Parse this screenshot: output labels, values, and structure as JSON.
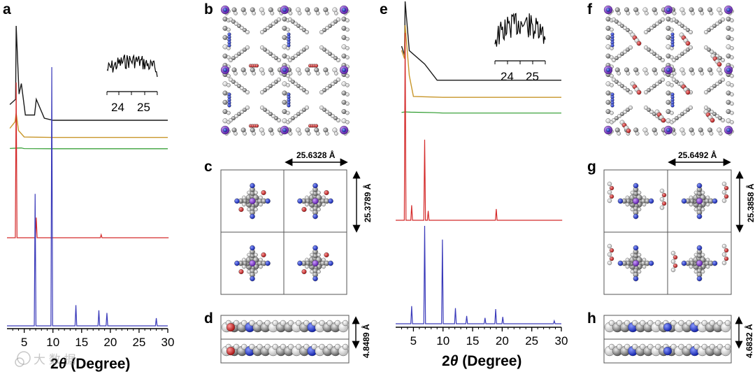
{
  "panels": {
    "a": "a",
    "b": "b",
    "c": "c",
    "d": "d",
    "e": "e",
    "f": "f",
    "g": "g",
    "h": "h"
  },
  "xaxis": {
    "label": "2θ (Degree)",
    "label_prefix": "2",
    "label_theta": "θ",
    "label_rest": " (Degree)",
    "min": 2,
    "max": 30
  },
  "left_ticks": [
    "5",
    "10",
    "15",
    "20",
    "25",
    "30"
  ],
  "right_ticks": [
    "5",
    "10",
    "15",
    "20",
    "25",
    "30"
  ],
  "inset_ticks": [
    "24",
    "25"
  ],
  "measures": {
    "c_width": "25.6328 Å",
    "c_height": "25.3789 Å",
    "d_height": "4.8489 Å",
    "g_width": "25.6492 Å",
    "g_height": "25.3858 Å",
    "h_height": "4.6832 Å"
  },
  "watermark": "大 数 据",
  "colors": {
    "black": "#1a1a1a",
    "gold": "#c8962a",
    "green": "#2a9a2a",
    "red": "#d42a2a",
    "blue": "#3a3aba",
    "atom_gray": "#8a8a8a",
    "atom_white": "#e8e8e8",
    "atom_blue": "#2233cc",
    "atom_red": "#d02020",
    "atom_purple": "#7a3acc"
  },
  "chart_data": [
    {
      "type": "line",
      "panel": "a",
      "xlabel": "2θ (Degree)",
      "xlim": [
        2,
        30
      ],
      "series": [
        {
          "color": "black",
          "x": [
            2.5,
            3.5,
            3.6,
            4.1,
            4.5,
            5.2,
            6.8,
            7.1,
            8.5,
            10,
            20,
            30
          ],
          "y": [
            0.25,
            0.3,
            1.0,
            0.35,
            0.45,
            0.15,
            0.15,
            0.3,
            0.12,
            0.1,
            0.1,
            0.1
          ]
        },
        {
          "color": "gold",
          "x": [
            2.5,
            3.4,
            3.6,
            4.0,
            5,
            10,
            20,
            30
          ],
          "y": [
            0.25,
            0.4,
            0.6,
            0.2,
            0.05,
            0.04,
            0.04,
            0.04
          ]
        },
        {
          "color": "green",
          "x": [
            2.5,
            3.5,
            4.5,
            5,
            10,
            30
          ],
          "y": [
            0.05,
            0.08,
            0.1,
            0.03,
            0.02,
            0.02
          ]
        },
        {
          "color": "red",
          "x": [
            3.6,
            7.1,
            18.4,
            30
          ],
          "y": [
            1.0,
            0.13,
            0.02,
            0.0
          ]
        },
        {
          "color": "blue",
          "x": [
            6.9,
            9.8,
            14.0,
            18.0,
            19.4,
            28.0
          ],
          "y": [
            0.51,
            1.0,
            0.08,
            0.06,
            0.05,
            0.03
          ]
        }
      ]
    },
    {
      "type": "line",
      "panel": "e",
      "xlabel": "2θ (Degree)",
      "xlim": [
        2,
        30
      ],
      "series": [
        {
          "color": "black",
          "x": [
            3,
            3.5,
            3.6,
            4.3,
            6.9,
            9,
            20,
            30
          ],
          "y": [
            0.5,
            0.4,
            1.0,
            0.45,
            0.3,
            0.12,
            0.12,
            0.12
          ]
        },
        {
          "color": "gold",
          "x": [
            3,
            3.5,
            3.6,
            4.3,
            5,
            10,
            30
          ],
          "y": [
            0.6,
            0.5,
            0.9,
            0.3,
            0.05,
            0.04,
            0.04
          ]
        },
        {
          "color": "green",
          "x": [
            3,
            3.6,
            4.5,
            8.5,
            10,
            30
          ],
          "y": [
            0.08,
            0.12,
            0.1,
            0.06,
            0.02,
            0.02
          ]
        },
        {
          "color": "red",
          "x": [
            3.6,
            4.7,
            6.9,
            7.5,
            19,
            30
          ],
          "y": [
            1.0,
            0.08,
            0.43,
            0.05,
            0.06,
            0.0
          ]
        },
        {
          "color": "blue",
          "x": [
            4.7,
            6.9,
            9.9,
            12.1,
            14.0,
            17.1,
            18.9,
            20.1,
            28.8
          ],
          "y": [
            0.18,
            1.0,
            0.86,
            0.16,
            0.08,
            0.06,
            0.15,
            0.07,
            0.03
          ]
        }
      ]
    }
  ]
}
